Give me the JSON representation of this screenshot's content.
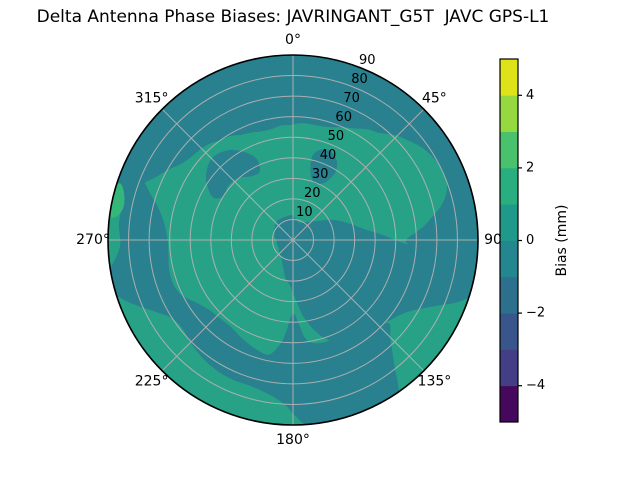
{
  "figure": {
    "title": "Delta Antenna Phase Biases: JAVRINGANT_G5T  JAVC GPS-L1",
    "background": "#ffffff"
  },
  "chart_data": {
    "type": "polar_contour_filled",
    "title": "Delta Antenna Phase Biases: JAVRINGANT_G5T  JAVC GPS-L1",
    "colormap": "viridis",
    "units": "mm",
    "angular_axis": {
      "direction": "clockwise",
      "zero_location": "top",
      "ticks": [
        {
          "deg": 0,
          "label": "0°"
        },
        {
          "deg": 45,
          "label": "45°"
        },
        {
          "deg": 90,
          "label": "90"
        },
        {
          "deg": 135,
          "label": "135°"
        },
        {
          "deg": 180,
          "label": "180°"
        },
        {
          "deg": 225,
          "label": "225°"
        },
        {
          "deg": 270,
          "label": "270°"
        },
        {
          "deg": 315,
          "label": "315°"
        }
      ]
    },
    "radial_axis": {
      "ticks": [
        10,
        20,
        30,
        40,
        50,
        60,
        70,
        80,
        90
      ],
      "max": 90,
      "label_angle_deg": 22.5
    },
    "grid": {
      "show": true,
      "color": "#B2B2B2",
      "rim_color": "#000000"
    },
    "levels_mm": [
      -5,
      -4,
      -3,
      -2,
      -1,
      0,
      1,
      2,
      3,
      4,
      5
    ],
    "base_region": {
      "name": "background-field",
      "range_mm": "0 to 1",
      "color": "#28A286"
    },
    "regions": [
      {
        "name": "outer-band",
        "range_mm": "-1 to 0",
        "color": "#29808E",
        "points": [
          [
            283,
            92
          ],
          [
            298,
            92
          ],
          [
            313,
            92
          ],
          [
            328,
            92
          ],
          [
            343,
            92
          ],
          [
            358,
            92
          ],
          [
            373,
            92
          ],
          [
            388,
            92
          ],
          [
            403,
            92
          ],
          [
            418,
            92
          ],
          [
            433,
            92
          ],
          [
            448,
            92
          ],
          [
            458,
            92
          ],
          [
            468,
            92
          ],
          [
            468,
            90
          ],
          [
            465,
            88
          ],
          [
            462,
            83
          ],
          [
            459,
            75
          ],
          [
            456,
            65
          ],
          [
            453,
            57
          ],
          [
            450,
            55
          ],
          [
            447,
            59
          ],
          [
            444,
            64
          ],
          [
            441,
            68
          ],
          [
            437,
            74
          ],
          [
            433,
            78
          ],
          [
            429,
            80
          ],
          [
            424,
            80
          ],
          [
            419,
            79
          ],
          [
            414,
            77
          ],
          [
            409,
            74
          ],
          [
            404,
            71
          ],
          [
            399,
            67
          ],
          [
            394,
            65
          ],
          [
            389,
            62
          ],
          [
            384,
            60
          ],
          [
            379,
            58
          ],
          [
            374,
            57
          ],
          [
            369,
            57
          ],
          [
            364,
            57
          ],
          [
            359,
            56
          ],
          [
            354,
            56
          ],
          [
            349,
            55
          ],
          [
            344,
            55
          ],
          [
            339,
            56
          ],
          [
            334,
            57
          ],
          [
            329,
            59
          ],
          [
            324,
            60
          ],
          [
            319,
            62
          ],
          [
            314,
            63
          ],
          [
            309,
            64
          ],
          [
            304,
            66
          ],
          [
            299,
            70
          ],
          [
            294,
            74
          ],
          [
            290,
            79
          ],
          [
            286,
            84
          ],
          [
            283,
            88
          ]
        ]
      },
      {
        "name": "center-right-blob",
        "range_mm": "-1 to 0",
        "color": "#29808E",
        "points": [
          [
            30,
            10
          ],
          [
            42,
            12
          ],
          [
            52,
            15
          ],
          [
            62,
            21
          ],
          [
            70,
            26
          ],
          [
            77,
            31
          ],
          [
            82,
            36
          ],
          [
            87,
            44
          ],
          [
            91,
            52
          ],
          [
            94,
            62
          ],
          [
            97,
            72
          ],
          [
            99,
            80
          ],
          [
            101,
            87
          ],
          [
            103,
            91
          ],
          [
            106,
            91
          ],
          [
            108,
            90
          ],
          [
            111,
            85
          ],
          [
            114,
            78
          ],
          [
            118,
            71
          ],
          [
            123,
            65
          ],
          [
            130,
            61
          ],
          [
            138,
            58
          ],
          [
            146,
            56
          ],
          [
            154,
            55
          ],
          [
            160,
            52
          ],
          [
            166,
            46
          ],
          [
            172,
            38
          ],
          [
            176,
            31
          ],
          [
            180,
            26
          ],
          [
            184,
            22
          ],
          [
            191,
            19
          ],
          [
            198,
            15
          ],
          [
            206,
            12
          ],
          [
            216,
            10
          ],
          [
            228,
            9
          ],
          [
            241,
            8
          ],
          [
            254,
            8
          ],
          [
            267,
            8
          ],
          [
            280,
            9
          ],
          [
            293,
            10
          ],
          [
            306,
            11
          ],
          [
            319,
            12
          ],
          [
            332,
            12
          ],
          [
            345,
            12
          ],
          [
            358,
            12
          ],
          [
            10,
            10
          ],
          [
            20,
            9
          ]
        ]
      },
      {
        "name": "bottom-band",
        "range_mm": "-1 to 0",
        "color": "#29808E",
        "points": [
          [
            131,
            62
          ],
          [
            135,
            67
          ],
          [
            139,
            74
          ],
          [
            142,
            81
          ],
          [
            144,
            87
          ],
          [
            146,
            91
          ],
          [
            152,
            92
          ],
          [
            160,
            92
          ],
          [
            168,
            92
          ],
          [
            175,
            91
          ],
          [
            179,
            86
          ],
          [
            183,
            80
          ],
          [
            189,
            76
          ],
          [
            196,
            74
          ],
          [
            205,
            74
          ],
          [
            214,
            73
          ],
          [
            223,
            71
          ],
          [
            231,
            69
          ],
          [
            237,
            70
          ],
          [
            242,
            75
          ],
          [
            247,
            82
          ],
          [
            251,
            88
          ],
          [
            255,
            92
          ],
          [
            259,
            92
          ],
          [
            262,
            89
          ],
          [
            265,
            86
          ],
          [
            269,
            84
          ],
          [
            275,
            85
          ],
          [
            281,
            85
          ],
          [
            287,
            87
          ],
          [
            291,
            89
          ],
          [
            292,
            80
          ],
          [
            288,
            73
          ],
          [
            283,
            67
          ],
          [
            277,
            63
          ],
          [
            270,
            61
          ],
          [
            263,
            61
          ],
          [
            256,
            62
          ],
          [
            249,
            62
          ],
          [
            243,
            60
          ],
          [
            237,
            56
          ],
          [
            230,
            53
          ],
          [
            223,
            52
          ],
          [
            215,
            52
          ],
          [
            207,
            54
          ],
          [
            199,
            56
          ],
          [
            192,
            57
          ],
          [
            187,
            51
          ],
          [
            184,
            44
          ],
          [
            182,
            38
          ],
          [
            179,
            36
          ],
          [
            176,
            41
          ],
          [
            173,
            48
          ],
          [
            169,
            51
          ],
          [
            163,
            52
          ],
          [
            156,
            52
          ],
          [
            149,
            53
          ],
          [
            142,
            56
          ],
          [
            136,
            58
          ]
        ]
      },
      {
        "name": "upper-left-arc",
        "range_mm": "-1 to 0",
        "color": "#29808E",
        "points": [
          [
            298,
            44
          ],
          [
            303,
            50
          ],
          [
            309,
            54
          ],
          [
            316,
            56
          ],
          [
            324,
            54
          ],
          [
            331,
            49
          ],
          [
            336,
            43
          ],
          [
            334,
            37
          ],
          [
            327,
            37
          ],
          [
            319,
            40
          ],
          [
            310,
            41
          ],
          [
            302,
            40
          ]
        ]
      },
      {
        "name": "north-blob",
        "range_mm": "-1 to 0",
        "color": "#29808E",
        "points": [
          [
            13,
            42
          ],
          [
            17,
            46
          ],
          [
            23,
            47
          ],
          [
            29,
            44
          ],
          [
            32,
            39
          ],
          [
            30,
            33
          ],
          [
            25,
            30
          ],
          [
            19,
            30
          ],
          [
            14,
            35
          ]
        ]
      },
      {
        "name": "west-rim-sliver",
        "range_mm": "1 to 2",
        "color": "#35B779",
        "points": [
          [
            279,
            91
          ],
          [
            283,
            92
          ],
          [
            287,
            91
          ],
          [
            288,
            88
          ],
          [
            285,
            85
          ],
          [
            281,
            84
          ],
          [
            278,
            86
          ],
          [
            277,
            89
          ]
        ]
      }
    ],
    "colorbar": {
      "label": "Bias (mm)",
      "min": -5,
      "max": 5,
      "tick_values": [
        4,
        2,
        0,
        -2,
        -4
      ],
      "segment_colors_bottom_to_top": [
        "#46085C",
        "#433E85",
        "#39568C",
        "#2D708E",
        "#24868E",
        "#1F9A8A",
        "#29AF7F",
        "#4AC16D",
        "#95D840",
        "#DDE318"
      ],
      "outline_color": "#000000"
    }
  }
}
